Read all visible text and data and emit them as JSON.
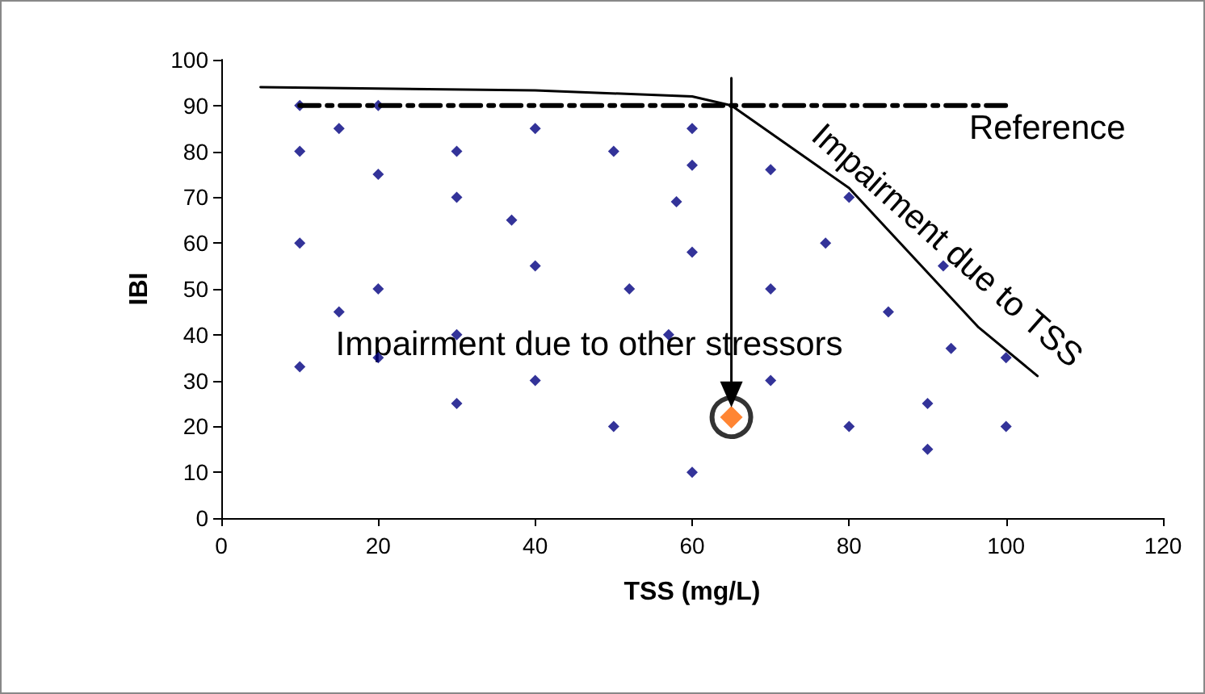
{
  "chart_data": {
    "type": "scatter",
    "xlabel": "TSS (mg/L)",
    "ylabel": "IBI",
    "xlim": [
      0,
      120
    ],
    "xticks": [
      0,
      20,
      40,
      60,
      80,
      100,
      120
    ],
    "ylim": [
      0,
      100
    ],
    "yticks": [
      0,
      10,
      20,
      30,
      40,
      50,
      60,
      70,
      80,
      90,
      100
    ],
    "grid": false,
    "legend": false,
    "marker": "diamond",
    "line_style": "solid",
    "series": [
      {
        "color": "#000080",
        "x": [
          10,
          10,
          10,
          10,
          15,
          15,
          20,
          20,
          20,
          20,
          30,
          30,
          30,
          30,
          37,
          40,
          40,
          40,
          50,
          50,
          52,
          57,
          58,
          60,
          60,
          60,
          60,
          70,
          70,
          70,
          77,
          80,
          80,
          85,
          92,
          93,
          100,
          90,
          90,
          100
        ],
        "values": [
          90,
          80,
          60,
          33,
          85,
          45,
          90,
          75,
          50,
          35,
          80,
          70,
          40,
          25,
          65,
          85,
          55,
          30,
          80,
          20,
          50,
          40,
          69,
          85,
          77,
          58,
          10,
          76,
          50,
          30,
          60,
          70,
          20,
          45,
          55,
          37,
          35,
          25,
          15,
          20
        ]
      },
      {
        "color": "#ff6600",
        "x": [
          65
        ],
        "values": [
          22
        ]
      },
      {
        "color": "#000000",
        "marker": "circle",
        "x": [
          65
        ],
        "values": [
          22
        ]
      },
      {
        "name": "Reference",
        "type": "line",
        "marker": "none",
        "line_style": "dashed",
        "color": "#000000",
        "x": [
          10,
          100
        ],
        "values": [
          90,
          90
        ]
      },
      {
        "name": "Impairment due to TSS",
        "type": "line",
        "marker": "none",
        "color": "#000000",
        "x": [
          5,
          40,
          60,
          65,
          80,
          96.5,
          104
        ],
        "values": [
          94,
          93.3,
          92,
          90,
          72,
          41.6,
          31
        ]
      },
      {
        "name": "Impairment due to other stressors",
        "type": "line",
        "marker": "triangle",
        "color": "#000000",
        "x": [
          65,
          65
        ],
        "values": [
          96,
          27
        ]
      }
    ]
  }
}
